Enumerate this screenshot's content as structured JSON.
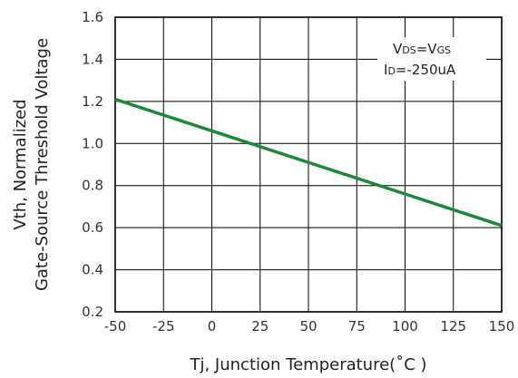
{
  "chart_data": {
    "type": "line",
    "title": "",
    "xlabel": "Tj,  Junction  Temperature(˚C )",
    "ylabel_line1": "Vth, Normalized",
    "ylabel_line2": "Gate-Source Threshold Voltage",
    "xlim": [
      -50,
      150
    ],
    "ylim": [
      0.2,
      1.6
    ],
    "xticks": [
      -50,
      -25,
      0,
      25,
      50,
      75,
      100,
      125,
      150
    ],
    "yticks": [
      0.2,
      0.4,
      0.6,
      0.8,
      1.0,
      1.2,
      1.4,
      1.6
    ],
    "grid": true,
    "series": [
      {
        "x": [
          -50,
          150
        ],
        "y": [
          1.21,
          0.61
        ],
        "color": "#1a8a3a"
      }
    ],
    "annotation": {
      "line1": [
        {
          "text": "V",
          "sub": false
        },
        {
          "text": "DS",
          "sub": true
        },
        {
          "text": "=V",
          "sub": false
        },
        {
          "text": "GS",
          "sub": true
        }
      ],
      "line2": [
        {
          "text": "I",
          "sub": false
        },
        {
          "text": "D",
          "sub": true
        },
        {
          "text": "=-250uA",
          "sub": false
        }
      ],
      "position": "top-right"
    }
  }
}
